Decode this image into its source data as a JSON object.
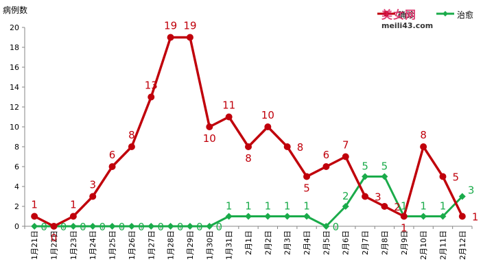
{
  "chart_data": {
    "type": "line",
    "ylabel": "病例数",
    "ylim": [
      0,
      20
    ],
    "yticks": [
      0,
      2,
      4,
      6,
      8,
      10,
      12,
      14,
      16,
      18,
      20
    ],
    "grid": false,
    "legend_position": "top-right",
    "categories": [
      "1月21日",
      "1月22日",
      "1月23日",
      "1月24日",
      "1月25日",
      "1月26日",
      "1月27日",
      "1月28日",
      "1月29日",
      "1月30日",
      "1月31日",
      "2月1日",
      "2月2日",
      "2月3日",
      "2月4日",
      "2月5日",
      "2月6日",
      "2月7日",
      "2月8日",
      "2月9日",
      "2月10日",
      "2月11日",
      "2月12日"
    ],
    "series": [
      {
        "name": "确诊",
        "color": "#c0000b",
        "values": [
          1,
          0,
          1,
          3,
          6,
          8,
          13,
          19,
          19,
          10,
          11,
          8,
          10,
          8,
          5,
          6,
          7,
          3,
          2,
          1,
          8,
          5,
          1
        ]
      },
      {
        "name": "治愈",
        "color": "#1aab4a",
        "values": [
          0,
          0,
          0,
          0,
          0,
          0,
          0,
          0,
          0,
          0,
          1,
          1,
          1,
          1,
          1,
          0,
          2,
          5,
          5,
          1,
          1,
          1,
          3
        ]
      }
    ]
  },
  "watermark": {
    "logo_text": "美女网",
    "url_text": "meili43.com"
  }
}
